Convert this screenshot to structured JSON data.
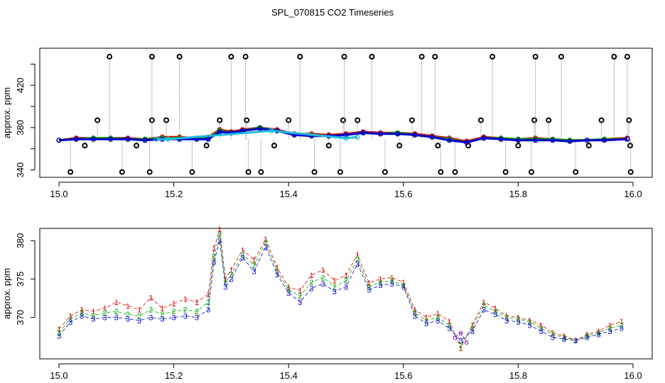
{
  "page": {
    "title": "SPL_070815  CO2 Timeseries"
  },
  "chart_data": [
    {
      "type": "scatter",
      "panel": "top",
      "title": "SPL_070815  CO2 Timeseries",
      "xlabel": "",
      "ylabel": "approx. ppm",
      "xlim": [
        15.0,
        16.0
      ],
      "ylim": [
        333,
        455
      ],
      "xticks": [
        15.0,
        15.2,
        15.4,
        15.6,
        15.8,
        16.0
      ],
      "xtick_labels": [
        "15.0",
        "15.2",
        "15.4",
        "15.6",
        "15.8",
        "16.0"
      ],
      "yticks": [
        340,
        360,
        380,
        400,
        420,
        440
      ],
      "ytick_labels": [
        "340",
        "",
        "380",
        "",
        "420",
        ""
      ],
      "series": [
        {
          "name": "raw (red)",
          "color": "#dd0000",
          "x": [
            15.0,
            15.03,
            15.06,
            15.09,
            15.12,
            15.15,
            15.18,
            15.21,
            15.24,
            15.26,
            15.28,
            15.3,
            15.32,
            15.35,
            15.38,
            15.41,
            15.44,
            15.47,
            15.5,
            15.53,
            15.56,
            15.59,
            15.62,
            15.65,
            15.68,
            15.71,
            15.74,
            15.77,
            15.8,
            15.83,
            15.86,
            15.89,
            15.92,
            15.95,
            15.99
          ],
          "y": [
            368,
            370,
            370,
            370,
            370,
            369,
            371,
            371,
            370,
            371,
            378,
            376,
            378,
            380,
            378,
            374,
            374,
            373,
            374,
            376,
            375,
            375,
            374,
            372,
            370,
            367,
            371,
            370,
            369,
            370,
            369,
            368,
            368,
            369,
            370
          ]
        },
        {
          "name": "green",
          "color": "#00aa00",
          "x": [
            15.0,
            15.03,
            15.06,
            15.09,
            15.12,
            15.15,
            15.18,
            15.21,
            15.24,
            15.26,
            15.28,
            15.3,
            15.32,
            15.35,
            15.38,
            15.41,
            15.44,
            15.47,
            15.5,
            15.53,
            15.56,
            15.59,
            15.62,
            15.65,
            15.68,
            15.71,
            15.74,
            15.77,
            15.8,
            15.83,
            15.86,
            15.89,
            15.92,
            15.95,
            15.99
          ],
          "y": [
            368,
            369,
            370,
            370,
            369,
            369,
            370,
            370,
            370,
            370,
            377,
            375,
            377,
            380,
            377,
            373,
            373,
            372,
            373,
            375,
            374,
            375,
            373,
            371,
            369,
            366,
            370,
            370,
            369,
            369,
            369,
            368,
            368,
            369,
            369
          ]
        },
        {
          "name": "blue",
          "color": "#0000cc",
          "x": [
            15.0,
            15.03,
            15.06,
            15.09,
            15.12,
            15.15,
            15.18,
            15.21,
            15.24,
            15.26,
            15.28,
            15.3,
            15.32,
            15.35,
            15.38,
            15.41,
            15.44,
            15.47,
            15.5,
            15.53,
            15.56,
            15.59,
            15.62,
            15.65,
            15.68,
            15.71,
            15.74,
            15.77,
            15.8,
            15.83,
            15.86,
            15.89,
            15.92,
            15.95,
            15.99
          ],
          "y": [
            368,
            369,
            369,
            369,
            369,
            368,
            369,
            369,
            369,
            369,
            376,
            375,
            377,
            379,
            377,
            373,
            372,
            372,
            373,
            375,
            374,
            374,
            373,
            371,
            368,
            366,
            370,
            369,
            368,
            368,
            368,
            367,
            368,
            368,
            369
          ]
        },
        {
          "name": "cyan",
          "color": "#22bbdd",
          "x": [
            15.17,
            15.19,
            15.37,
            15.5,
            15.52
          ],
          "y": [
            369,
            369,
            377,
            370,
            371
          ]
        }
      ],
      "spikes": {
        "name": "outliers (black circles)",
        "color": "#000000",
        "x": [
          15.02,
          15.045,
          15.067,
          15.088,
          15.11,
          15.135,
          15.158,
          15.162,
          15.162,
          15.187,
          15.21,
          15.232,
          15.257,
          15.28,
          15.3,
          15.325,
          15.327,
          15.33,
          15.352,
          15.375,
          15.4,
          15.42,
          15.445,
          15.47,
          15.49,
          15.495,
          15.497,
          15.52,
          15.545,
          15.568,
          15.593,
          15.615,
          15.632,
          15.655,
          15.66,
          15.665,
          15.69,
          15.713,
          15.735,
          15.755,
          15.778,
          15.8,
          15.823,
          15.828,
          15.83,
          15.853,
          15.875,
          15.9,
          15.923,
          15.945,
          15.967,
          15.99,
          15.993,
          15.995,
          15.996
        ],
        "y": [
          338,
          363,
          387,
          447,
          338,
          363,
          338,
          387,
          447,
          387,
          447,
          338,
          363,
          387,
          447,
          447,
          387,
          338,
          338,
          363,
          387,
          447,
          338,
          363,
          338,
          387,
          447,
          387,
          447,
          338,
          363,
          387,
          447,
          447,
          363,
          338,
          338,
          363,
          387,
          447,
          338,
          363,
          338,
          387,
          447,
          387,
          447,
          338,
          363,
          387,
          447,
          447,
          387,
          363,
          338
        ]
      }
    },
    {
      "type": "scatter",
      "panel": "bottom",
      "xlabel": "",
      "ylabel": "approx. ppm",
      "xlim": [
        15.0,
        16.0
      ],
      "ylim": [
        364.6,
        381.6
      ],
      "xticks": [
        15.0,
        15.2,
        15.4,
        15.6,
        15.8,
        16.0
      ],
      "xtick_labels": [
        "15.0",
        "15.2",
        "15.4",
        "15.6",
        "15.8",
        "16.0"
      ],
      "yticks": [
        370,
        375,
        380
      ],
      "ytick_labels": [
        "370",
        "375",
        "380"
      ],
      "series": [
        {
          "name": "1",
          "symbol": "1",
          "color": "#dd0000",
          "x": [
            15.0,
            15.02,
            15.04,
            15.06,
            15.08,
            15.1,
            15.12,
            15.14,
            15.16,
            15.18,
            15.2,
            15.22,
            15.24,
            15.26,
            15.27,
            15.28,
            15.29,
            15.3,
            15.32,
            15.34,
            15.36,
            15.38,
            15.4,
            15.42,
            15.44,
            15.46,
            15.48,
            15.5,
            15.52,
            15.54,
            15.56,
            15.58,
            15.6,
            15.62,
            15.64,
            15.66,
            15.68,
            15.7,
            15.72,
            15.74,
            15.76,
            15.78,
            15.8,
            15.82,
            15.84,
            15.86,
            15.88,
            15.9,
            15.92,
            15.94,
            15.96,
            15.98
          ],
          "y": [
            368.5,
            370.2,
            371.0,
            370.8,
            371.2,
            372.0,
            371.5,
            371.0,
            372.6,
            371.2,
            371.8,
            372.4,
            372.0,
            373.0,
            379.0,
            381.5,
            375.0,
            376.2,
            378.8,
            377.5,
            380.2,
            376.5,
            374.0,
            373.5,
            375.5,
            376.2,
            374.8,
            375.5,
            378.2,
            374.5,
            375.0,
            375.2,
            374.6,
            371.0,
            370.0,
            370.5,
            369.5,
            366.0,
            369.0,
            372.0,
            371.2,
            370.2,
            370.0,
            369.6,
            369.0,
            368.0,
            367.6,
            367.0,
            367.8,
            368.2,
            369.0,
            369.5
          ]
        },
        {
          "name": "2",
          "symbol": "2",
          "color": "#00aa00",
          "x": [
            15.0,
            15.02,
            15.04,
            15.06,
            15.08,
            15.1,
            15.12,
            15.14,
            15.16,
            15.18,
            15.2,
            15.22,
            15.24,
            15.26,
            15.27,
            15.28,
            15.29,
            15.3,
            15.32,
            15.34,
            15.36,
            15.38,
            15.4,
            15.42,
            15.44,
            15.46,
            15.48,
            15.5,
            15.52,
            15.54,
            15.56,
            15.58,
            15.6,
            15.62,
            15.64,
            15.66,
            15.68,
            15.7,
            15.72,
            15.74,
            15.76,
            15.78,
            15.8,
            15.82,
            15.84,
            15.86,
            15.88,
            15.9,
            15.92,
            15.94,
            15.96,
            15.98
          ],
          "y": [
            368.0,
            369.8,
            370.6,
            370.2,
            370.6,
            370.8,
            370.4,
            370.2,
            371.0,
            370.4,
            370.8,
            371.0,
            370.8,
            372.0,
            378.0,
            380.8,
            374.6,
            375.6,
            378.2,
            376.8,
            379.8,
            376.0,
            373.6,
            372.8,
            374.6,
            375.2,
            374.0,
            374.8,
            377.6,
            374.0,
            374.6,
            374.8,
            374.2,
            370.6,
            369.6,
            370.0,
            369.0,
            366.4,
            368.6,
            371.6,
            370.8,
            370.0,
            369.8,
            369.4,
            368.6,
            367.8,
            367.4,
            367.0,
            367.6,
            368.0,
            368.6,
            369.0
          ]
        },
        {
          "name": "3",
          "symbol": "3",
          "color": "#0000cc",
          "x": [
            15.0,
            15.02,
            15.04,
            15.06,
            15.08,
            15.1,
            15.12,
            15.14,
            15.16,
            15.18,
            15.2,
            15.22,
            15.24,
            15.26,
            15.27,
            15.28,
            15.29,
            15.3,
            15.32,
            15.34,
            15.36,
            15.38,
            15.4,
            15.42,
            15.44,
            15.46,
            15.48,
            15.5,
            15.52,
            15.54,
            15.56,
            15.58,
            15.6,
            15.62,
            15.64,
            15.66,
            15.68,
            15.7,
            15.72,
            15.74,
            15.76,
            15.78,
            15.8,
            15.82,
            15.84,
            15.86,
            15.88,
            15.9,
            15.92,
            15.94,
            15.96,
            15.98
          ],
          "y": [
            367.6,
            369.4,
            370.2,
            369.8,
            370.0,
            370.0,
            369.8,
            369.6,
            370.0,
            369.8,
            370.0,
            370.2,
            370.0,
            371.0,
            377.2,
            380.0,
            374.0,
            375.0,
            377.8,
            376.0,
            379.2,
            375.6,
            373.2,
            372.0,
            373.8,
            374.4,
            373.4,
            374.0,
            377.0,
            373.6,
            374.2,
            374.4,
            374.0,
            370.2,
            369.2,
            369.6,
            368.6,
            367.0,
            368.2,
            371.0,
            370.4,
            369.6,
            369.4,
            369.0,
            368.2,
            367.4,
            367.2,
            367.0,
            367.4,
            367.8,
            368.2,
            368.6
          ]
        },
        {
          "name": "purple",
          "symbol": "o",
          "color": "#8800aa",
          "x": [
            15.69,
            15.7,
            15.71
          ],
          "y": [
            367.4,
            368.0,
            366.8
          ]
        }
      ]
    }
  ]
}
